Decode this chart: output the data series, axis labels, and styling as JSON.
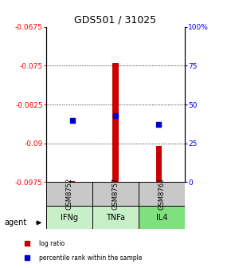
{
  "title": "GDS501 / 31025",
  "samples": [
    "GSM8752",
    "GSM8757",
    "GSM8762"
  ],
  "agents": [
    "IFNg",
    "TNFa",
    "IL4"
  ],
  "log_ratios": [
    -0.0973,
    -0.0745,
    -0.0905
  ],
  "percentile_ranks": [
    40,
    43,
    37
  ],
  "ymin": -0.0975,
  "ymax": -0.0675,
  "yticks_left": [
    -0.0975,
    -0.09,
    -0.0825,
    -0.075,
    -0.0675
  ],
  "yticks_right": [
    0,
    25,
    50,
    75,
    100
  ],
  "bar_color": "#cc0000",
  "dot_color": "#0000cc",
  "sample_box_color": "#c8c8c8",
  "agent_colors": [
    "#c8f0c8",
    "#c8f0c8",
    "#80e080"
  ],
  "bar_baseline": -0.0975,
  "grid_ticks": [
    -0.075,
    -0.0825,
    -0.09
  ],
  "title_fontsize": 9,
  "tick_fontsize": 6.5,
  "legend_fontsize": 5.5
}
